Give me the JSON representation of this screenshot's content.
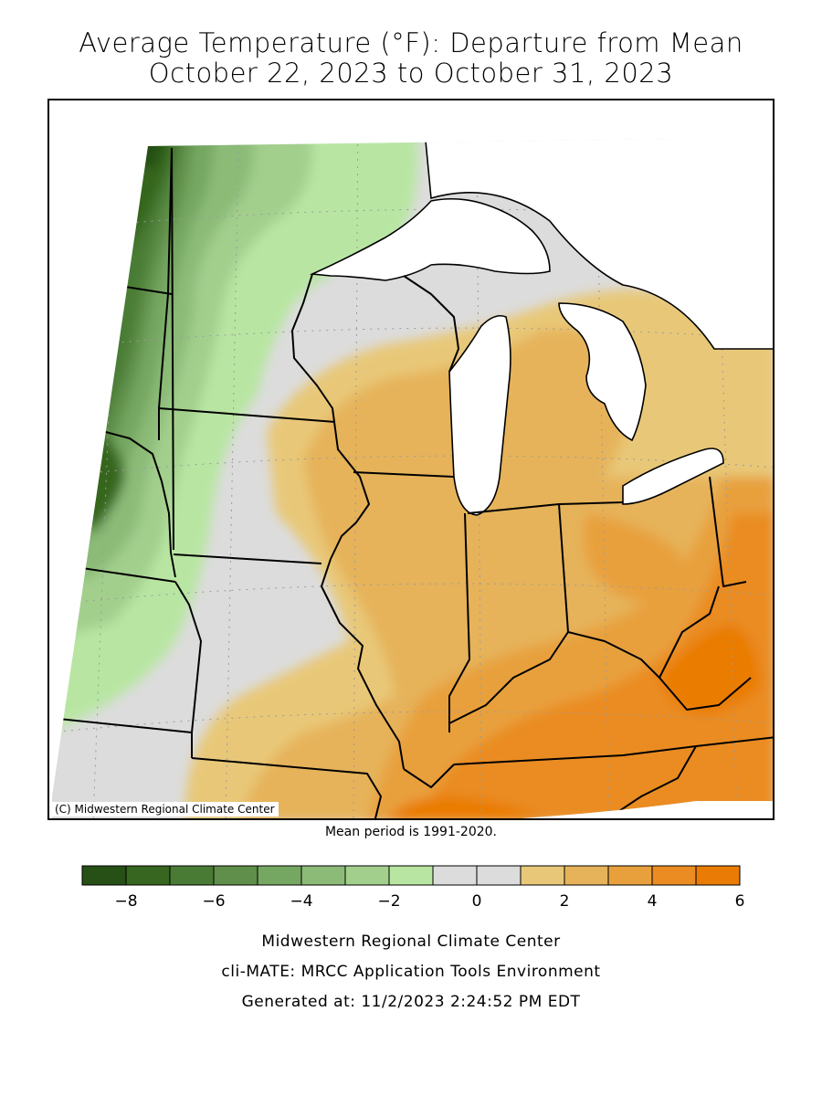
{
  "title": {
    "line1": "Average Temperature (°F): Departure from Mean",
    "line2": "October 22, 2023 to October 31, 2023"
  },
  "map": {
    "copyright": "(C) Midwestern Regional Climate Center",
    "region": "Midwest United States",
    "colors": {
      "land_default": "#dcdcdc",
      "water": "#ffffff",
      "state_lines": "#000000",
      "graticule": "#9a9a9a"
    }
  },
  "mean_note": "Mean period is 1991-2020.",
  "legend": {
    "bins": [
      {
        "lo": -9,
        "hi": -8,
        "color": "#265016"
      },
      {
        "lo": -8,
        "hi": -7,
        "color": "#36661f"
      },
      {
        "lo": -7,
        "hi": -6,
        "color": "#4a7b35"
      },
      {
        "lo": -6,
        "hi": -5,
        "color": "#5f8f4a"
      },
      {
        "lo": -5,
        "hi": -4,
        "color": "#76a762"
      },
      {
        "lo": -4,
        "hi": -3,
        "color": "#8cbb78"
      },
      {
        "lo": -3,
        "hi": -2,
        "color": "#a3cf8d"
      },
      {
        "lo": -2,
        "hi": -1,
        "color": "#b8e6a2"
      },
      {
        "lo": -1,
        "hi": 0,
        "color": "#dcdcdc"
      },
      {
        "lo": 0,
        "hi": 1,
        "color": "#dcdcdc"
      },
      {
        "lo": 1,
        "hi": 2,
        "color": "#e8c878"
      },
      {
        "lo": 2,
        "hi": 3,
        "color": "#e6b35a"
      },
      {
        "lo": 3,
        "hi": 4,
        "color": "#e8a03d"
      },
      {
        "lo": 4,
        "hi": 5,
        "color": "#ea8c22"
      },
      {
        "lo": 5,
        "hi": 6,
        "color": "#ea7b04"
      }
    ],
    "ticks": [
      {
        "value": -8,
        "label": "−8"
      },
      {
        "value": -6,
        "label": "−6"
      },
      {
        "value": -4,
        "label": "−4"
      },
      {
        "value": -2,
        "label": "−2"
      },
      {
        "value": 0,
        "label": "0"
      },
      {
        "value": 2,
        "label": "2"
      },
      {
        "value": 4,
        "label": "4"
      },
      {
        "value": 6,
        "label": "6"
      }
    ]
  },
  "footer": {
    "line1": "Midwestern Regional Climate Center",
    "line2": "cli-MATE: MRCC Application Tools Environment",
    "line3": "Generated at: 11/2/2023 2:24:52 PM EDT"
  }
}
